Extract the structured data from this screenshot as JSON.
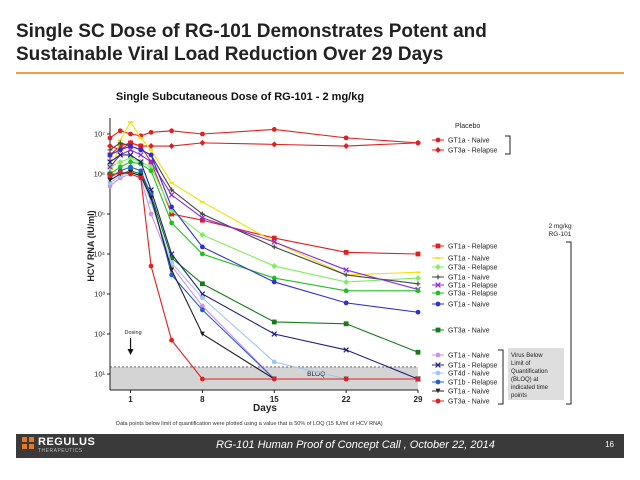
{
  "slide": {
    "title": "Single SC Dose of RG-101 Demonstrates Potent and Sustainable Viral Load Reduction Over 29 Days",
    "footer_brand": "REGULUS",
    "footer_sub": "THERAPEUTICS",
    "footer_text": "RG-101 Human Proof of Concept Call , October 22, 2014",
    "page_number": "16",
    "accent_color": "#f0a040",
    "footer_color": "#3a3a3a"
  },
  "chart_data": {
    "type": "line",
    "title": "Single Subcutaneous Dose of RG-101 - 2 mg/kg",
    "xlabel": "Days",
    "ylabel": "HCV RNA (IU/ml)",
    "x_ticks": [
      1,
      8,
      15,
      22,
      29
    ],
    "y_ticks": [
      "10¹",
      "10²",
      "10³",
      "10⁴",
      "10⁵",
      "10⁶",
      "10⁷"
    ],
    "xlim": [
      -1,
      29
    ],
    "ylim_log10": [
      0.6,
      7.4
    ],
    "scale": "log",
    "footnote": "Data points below limit of quantification were plotted using a value that is 50% of LOQ (15 IU/ml of HCV RNA)",
    "dosing_label": "Dosing",
    "bloq_label": "BLOQ",
    "bloq_value": 15,
    "placebo_label": "Placebo",
    "dose_label": "2 mg/kg\nRG-101",
    "bloq_note": "Virus Below Limit of Quantification (BLOQ) at indicated time points",
    "series": [
      {
        "name": "GT1a - Naive",
        "group": "placebo",
        "color": "#e02020",
        "marker": "dot",
        "x": [
          -1,
          0,
          1,
          2,
          3,
          5,
          8,
          15,
          22,
          29
        ],
        "y": [
          8000000,
          12000000,
          10000000,
          9000000,
          11000000,
          12000000,
          10000000,
          13000000,
          8000000,
          6000000
        ]
      },
      {
        "name": "GT3a - Relapse",
        "group": "placebo",
        "color": "#e02020",
        "marker": "diamond",
        "x": [
          -1,
          0,
          1,
          2,
          3,
          5,
          8,
          15,
          22,
          29
        ],
        "y": [
          5000000,
          4000000,
          6000000,
          5000000,
          5000000,
          5000000,
          6000000,
          5500000,
          5000000,
          6000000
        ]
      },
      {
        "name": "GT1a - Relapse",
        "group": "treated",
        "color": "#e02020",
        "marker": "square",
        "x": [
          -1,
          0,
          1,
          2,
          3,
          5,
          8,
          15,
          22,
          29
        ],
        "y": [
          3000000,
          5000000,
          6000000,
          5000000,
          2000000,
          100000,
          70000,
          25000,
          11000,
          10000
        ]
      },
      {
        "name": "GT1a - Naive",
        "group": "treated",
        "color": "#f0e000",
        "marker": "dash",
        "x": [
          -1,
          0,
          1,
          2,
          3,
          5,
          8,
          15,
          22,
          29
        ],
        "y": [
          800000,
          7000000,
          20000000,
          8000000,
          4000000,
          600000,
          200000,
          20000,
          3000,
          3500
        ]
      },
      {
        "name": "GT3a - Relapse",
        "group": "treated",
        "color": "#80ee60",
        "marker": "diamond",
        "x": [
          -1,
          0,
          1,
          2,
          3,
          5,
          8,
          15,
          22,
          29
        ],
        "y": [
          1500000,
          2000000,
          2500000,
          2000000,
          1500000,
          120000,
          30000,
          5000,
          2000,
          2500
        ]
      },
      {
        "name": "GT1a - Naive",
        "group": "treated",
        "color": "#444444",
        "marker": "plus",
        "x": [
          -1,
          0,
          1,
          2,
          3,
          5,
          8,
          15,
          22,
          29
        ],
        "y": [
          4000000,
          6000000,
          5000000,
          4000000,
          3000000,
          400000,
          100000,
          15000,
          3000,
          1800
        ]
      },
      {
        "name": "GT1a - Relapse",
        "group": "treated",
        "color": "#8a2be2",
        "marker": "cross",
        "x": [
          -1,
          0,
          1,
          2,
          3,
          5,
          8,
          15,
          22,
          29
        ],
        "y": [
          1500000,
          3000000,
          4000000,
          3000000,
          2000000,
          300000,
          80000,
          20000,
          4000,
          1300
        ]
      },
      {
        "name": "GT3a - Relapse",
        "group": "treated",
        "color": "#20c020",
        "marker": "dot",
        "x": [
          -1,
          0,
          1,
          2,
          3,
          5,
          8,
          15,
          22,
          29
        ],
        "y": [
          1000000,
          1500000,
          2000000,
          1800000,
          1200000,
          60000,
          10000,
          2500,
          1200,
          1200
        ]
      },
      {
        "name": "GT1a - Naive",
        "group": "treated",
        "color": "#3030d0",
        "marker": "dot",
        "x": [
          -1,
          0,
          1,
          2,
          3,
          5,
          8,
          15,
          22,
          29
        ],
        "y": [
          3000000,
          4000000,
          5000000,
          4000000,
          3000000,
          150000,
          15000,
          2000,
          600,
          350
        ]
      },
      {
        "name": "GT3a - Naive",
        "group": "treated",
        "color": "#1a7a1a",
        "marker": "square",
        "x": [
          -1,
          0,
          1,
          2,
          3,
          5,
          8,
          15,
          22,
          29
        ],
        "y": [
          1000000,
          1000000,
          1200000,
          1000000,
          300000,
          8000,
          1800,
          200,
          180,
          35
        ]
      },
      {
        "name": "GT1a - Naive",
        "group": "bloq",
        "color": "#d090e8",
        "marker": "dot",
        "x": [
          -1,
          0,
          1,
          2,
          3,
          5,
          8,
          15,
          22,
          29
        ],
        "y": [
          500000,
          800000,
          1000000,
          800000,
          100000,
          5000,
          500,
          7.5,
          7.5,
          7.5
        ]
      },
      {
        "name": "GT1a - Relapse",
        "group": "bloq",
        "color": "#202080",
        "marker": "cross",
        "x": [
          -1,
          0,
          1,
          2,
          3,
          5,
          8,
          15,
          22,
          29
        ],
        "y": [
          2000000,
          3000000,
          3000000,
          2000000,
          400000,
          10000,
          1000,
          100,
          40,
          7.5
        ]
      },
      {
        "name": "GT4d - Naive",
        "group": "bloq",
        "color": "#a0c8f0",
        "marker": "dot",
        "x": [
          -1,
          0,
          1,
          2,
          3,
          5,
          8,
          15,
          22,
          29
        ],
        "y": [
          600000,
          900000,
          1100000,
          900000,
          200000,
          6000,
          800,
          20,
          7.5,
          7.5
        ]
      },
      {
        "name": "GT1b - Relapse",
        "group": "bloq",
        "color": "#2060d0",
        "marker": "dot",
        "x": [
          -1,
          0,
          1,
          2,
          3,
          5,
          8,
          15,
          22,
          29
        ],
        "y": [
          800000,
          1200000,
          1500000,
          1200000,
          300000,
          3000,
          400,
          7.5,
          7.5,
          7.5
        ]
      },
      {
        "name": "GT1a - Naive",
        "group": "bloq",
        "color": "#222222",
        "marker": "tri",
        "x": [
          -1,
          0,
          1,
          2,
          3,
          5,
          8,
          15,
          22,
          29
        ],
        "y": [
          700000,
          1000000,
          1100000,
          900000,
          250000,
          4000,
          100,
          7.5,
          7.5,
          7.5
        ]
      },
      {
        "name": "GT3a - Naive",
        "group": "bloq",
        "color": "#e02020",
        "marker": "dot",
        "x": [
          -1,
          0,
          1,
          2,
          3,
          5,
          8,
          15,
          22,
          29
        ],
        "y": [
          900000,
          1100000,
          1000000,
          800000,
          5000,
          70,
          7.5,
          7.5,
          7.5,
          7.5
        ]
      }
    ]
  }
}
